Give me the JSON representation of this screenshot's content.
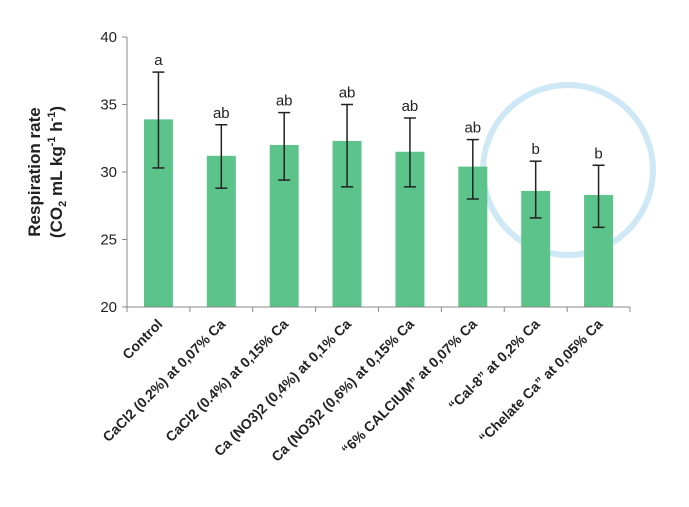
{
  "chart_data": {
    "type": "bar",
    "ylabel_line1": "Respiration rate",
    "ylabel_line2_parts": [
      "(CO",
      "2",
      " mL kg",
      "-1",
      " h",
      "-1",
      ")"
    ],
    "ylim": [
      20,
      40
    ],
    "yticks": [
      "20",
      "25",
      "30",
      "35",
      "40"
    ],
    "categories": [
      "Control",
      "CaCl2 (0.2%) at 0,07% Ca",
      "CaCl2 (0.4%) at 0,15% Ca",
      "Ca (NO3)2 (0,4%) at 0,1% Ca",
      "Ca (NO3)2 (0,6%) at 0,15% Ca",
      "“6% CALCIUM” at 0,07% Ca",
      "“Cal-8” at 0,2% Ca",
      "“Chelate Ca” at 0,05% Ca"
    ],
    "values": [
      33.9,
      31.2,
      32.0,
      32.3,
      31.5,
      30.4,
      28.6,
      28.3
    ],
    "error_high": [
      37.4,
      33.5,
      34.4,
      35.0,
      34.0,
      32.4,
      30.8,
      30.5
    ],
    "error_low": [
      30.3,
      28.8,
      29.4,
      28.9,
      28.9,
      28.0,
      26.6,
      25.9
    ],
    "significance": [
      "a",
      "ab",
      "ab",
      "ab",
      "ab",
      "ab",
      "b",
      "b"
    ],
    "colors": {
      "bar": "#5cc48a",
      "highlight_circle": "#cfe8f5",
      "axis": "#888888",
      "error_bar": "#222222"
    },
    "grid": false
  }
}
